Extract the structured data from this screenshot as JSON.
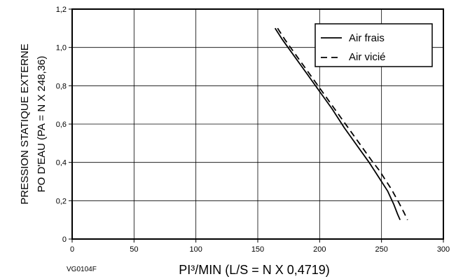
{
  "chart_data": {
    "type": "line",
    "title": "",
    "xlabel": "PI³/MIN (L/S = N X 0,4719)",
    "ylabel_line1": "PRESSION STATIQUE EXTERNE",
    "ylabel_line2": "PO D'EAU (PA = N X 248,36)",
    "figure_code": "VG0104F",
    "xlim": [
      0,
      300
    ],
    "ylim": [
      0,
      1.2
    ],
    "xticks": [
      0,
      50,
      100,
      150,
      200,
      250,
      300
    ],
    "xtick_labels": [
      "0",
      "50",
      "100",
      "150",
      "200",
      "250",
      "300"
    ],
    "yticks": [
      0,
      0.2,
      0.4,
      0.6,
      0.8,
      1.0,
      1.2
    ],
    "ytick_labels": [
      "0",
      "0,2",
      "0,4",
      "0,6",
      "0,8",
      "1,0",
      "1,2"
    ],
    "grid": true,
    "legend_position": "top-right",
    "series": [
      {
        "name": "Air frais",
        "style": "solid",
        "color": "#000000",
        "x": [
          164,
          170,
          180,
          190,
          200,
          210,
          220,
          230,
          240,
          245,
          250,
          255,
          260,
          263,
          265
        ],
        "y": [
          1.1,
          1.04,
          0.95,
          0.86,
          0.77,
          0.68,
          0.58,
          0.49,
          0.4,
          0.35,
          0.3,
          0.25,
          0.18,
          0.13,
          0.1
        ]
      },
      {
        "name": "Air vicié",
        "style": "dashed",
        "color": "#000000",
        "x": [
          166,
          172,
          182,
          192,
          202,
          212,
          222,
          232,
          242,
          248,
          253,
          258,
          264,
          268,
          271
        ],
        "y": [
          1.1,
          1.04,
          0.95,
          0.86,
          0.77,
          0.68,
          0.59,
          0.5,
          0.41,
          0.36,
          0.31,
          0.26,
          0.19,
          0.14,
          0.1
        ]
      }
    ]
  }
}
